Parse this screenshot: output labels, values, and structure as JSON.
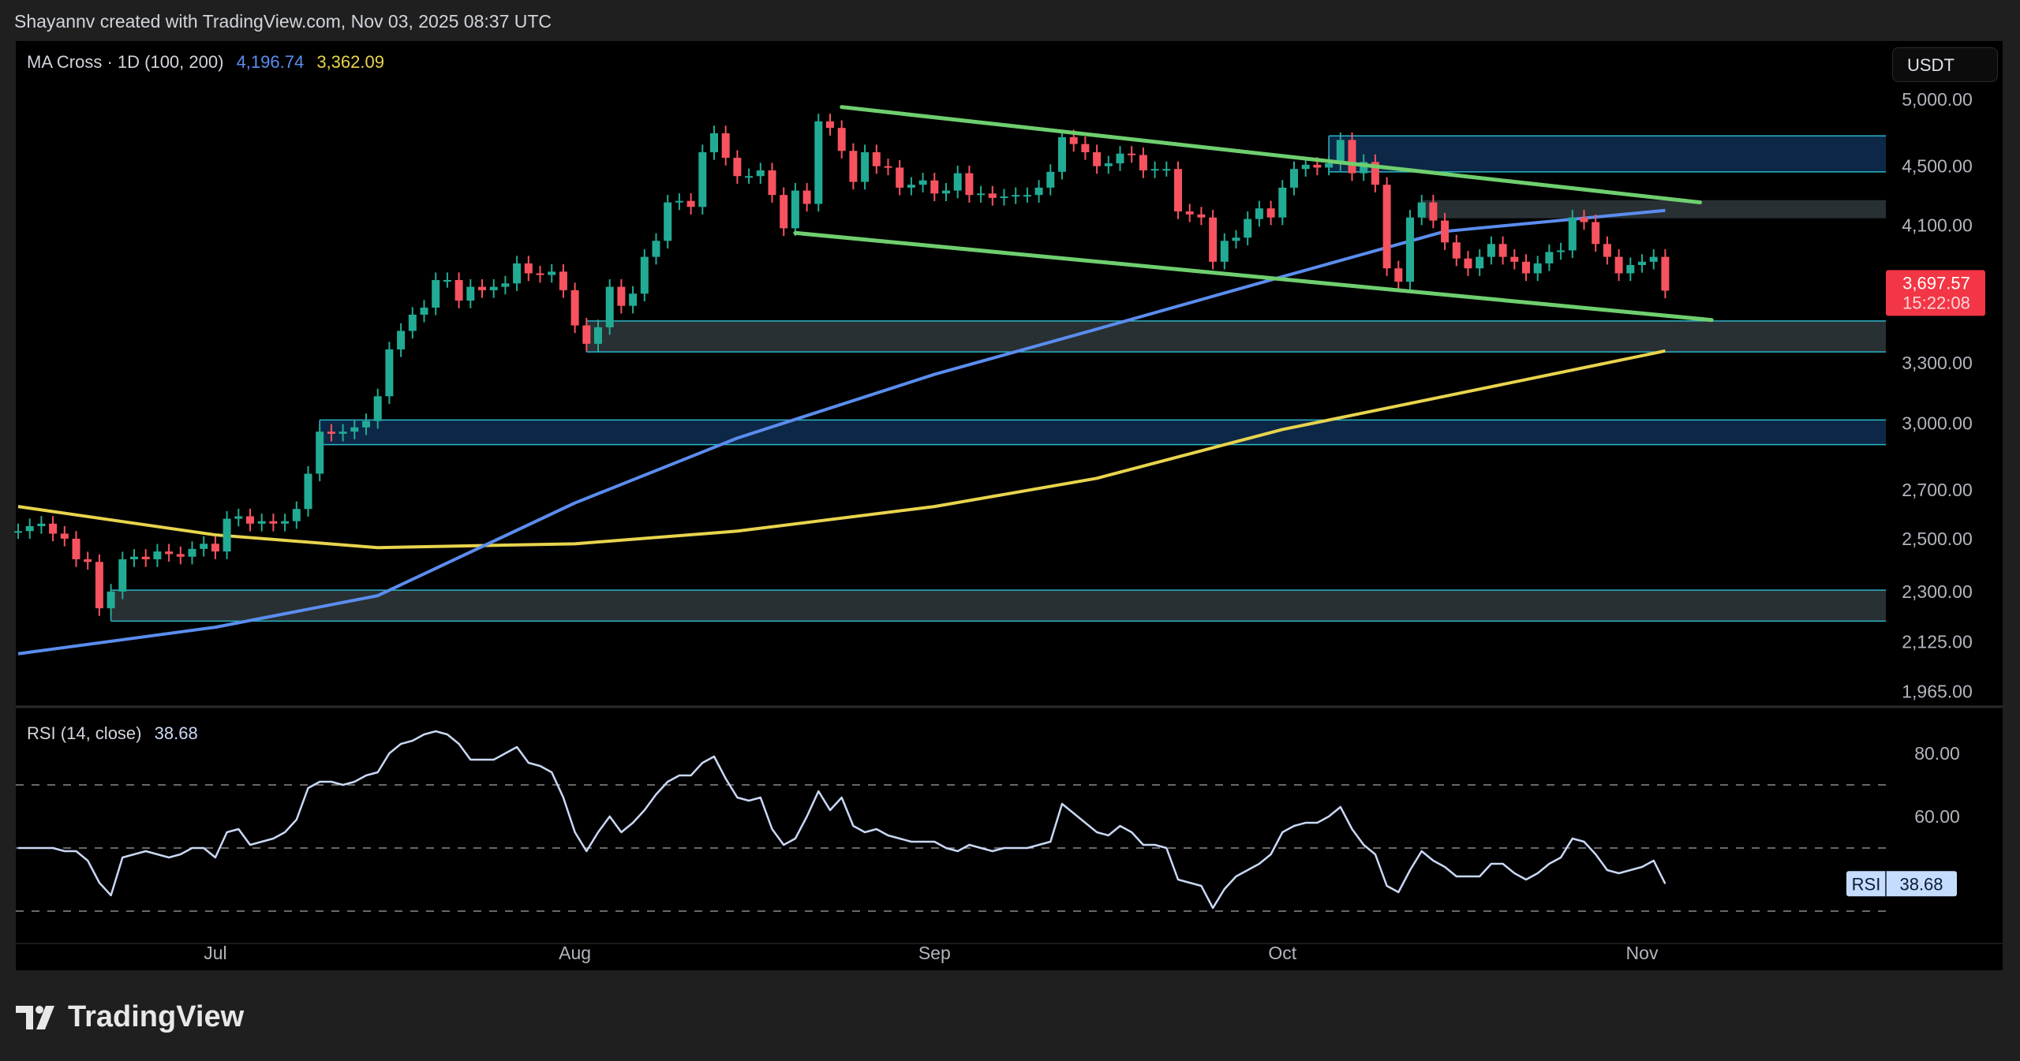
{
  "header": {
    "attribution": "Shayannv created with TradingView.com, Nov 03, 2025 08:37 UTC"
  },
  "legend": {
    "indicator": "MA Cross · 1D (100, 200)",
    "ma100_value": "4,196.74",
    "ma200_value": "3,362.09"
  },
  "rsi_legend": {
    "label": "RSI (14, close)",
    "value": "38.68"
  },
  "currency_button": "USDT",
  "price_badge": {
    "price": "3,697.57",
    "countdown": "15:22:08"
  },
  "rsi_badge": {
    "label": "RSI",
    "value": "38.68"
  },
  "brand": "TradingView",
  "colors": {
    "up": "#22ab94",
    "down": "#f7525f",
    "ma100": "#5b8def",
    "ma200": "#e8d44d",
    "channel": "#6fcf6f",
    "rsi": "#c9d8f5",
    "zone_blue": "#0d2a4a",
    "zone_gray": "#2a3336",
    "zone_border": "#2bb5c9"
  },
  "chart_data": {
    "type": "candlestick",
    "start_date": "2025-06-14",
    "scale": "log",
    "closes": [
      2530,
      2550,
      2560,
      2520,
      2500,
      2420,
      2410,
      2240,
      2300,
      2420,
      2430,
      2420,
      2450,
      2440,
      2430,
      2460,
      2480,
      2450,
      2580,
      2590,
      2560,
      2570,
      2560,
      2570,
      2620,
      2770,
      2960,
      2950,
      2960,
      2980,
      3010,
      3130,
      3370,
      3470,
      3560,
      3600,
      3760,
      3760,
      3640,
      3720,
      3700,
      3720,
      3740,
      3860,
      3800,
      3790,
      3810,
      3700,
      3500,
      3400,
      3490,
      3720,
      3610,
      3680,
      3900,
      4000,
      4250,
      4260,
      4220,
      4600,
      4740,
      4560,
      4430,
      4430,
      4470,
      4300,
      4080,
      4330,
      4240,
      4830,
      4780,
      4610,
      4390,
      4600,
      4500,
      4490,
      4350,
      4370,
      4400,
      4310,
      4330,
      4450,
      4300,
      4310,
      4280,
      4290,
      4300,
      4300,
      4350,
      4460,
      4710,
      4660,
      4600,
      4500,
      4520,
      4590,
      4580,
      4470,
      4480,
      4480,
      4190,
      4170,
      4150,
      3870,
      4000,
      4020,
      4140,
      4210,
      4150,
      4350,
      4480,
      4510,
      4490,
      4520,
      4690,
      4450,
      4530,
      4370,
      3830,
      3750,
      4150,
      4250,
      4130,
      3990,
      3890,
      3830,
      3900,
      3980,
      3900,
      3870,
      3800,
      3860,
      3930,
      3940,
      4150,
      4120,
      3980,
      3900,
      3800,
      3850,
      3870,
      3900,
      3697.57
    ],
    "ma100": [
      [
        "2025-06-14",
        2085
      ],
      [
        "2025-07-01",
        2174
      ],
      [
        "2025-07-15",
        2285
      ],
      [
        "2025-08-01",
        2645
      ],
      [
        "2025-08-15",
        2930
      ],
      [
        "2025-09-01",
        3240
      ],
      [
        "2025-09-15",
        3480
      ],
      [
        "2025-10-01",
        3780
      ],
      [
        "2025-10-15",
        4060
      ],
      [
        "2025-11-03",
        4196.74
      ]
    ],
    "ma200": [
      [
        "2025-06-14",
        2630
      ],
      [
        "2025-07-01",
        2515
      ],
      [
        "2025-07-15",
        2465
      ],
      [
        "2025-08-01",
        2480
      ],
      [
        "2025-08-15",
        2530
      ],
      [
        "2025-09-01",
        2630
      ],
      [
        "2025-09-15",
        2750
      ],
      [
        "2025-10-01",
        2970
      ],
      [
        "2025-10-15",
        3130
      ],
      [
        "2025-11-03",
        3362.09
      ]
    ],
    "zones": [
      {
        "from": "2025-10-05",
        "top": 4720,
        "bottom": 4460,
        "style": "blue"
      },
      {
        "from": "2025-10-13",
        "top": 4265,
        "bottom": 4145,
        "style": "gray"
      },
      {
        "from": "2025-08-02",
        "top": 3525,
        "bottom": 3357,
        "style": "gray"
      },
      {
        "from": "2025-07-10",
        "top": 3015,
        "bottom": 2900,
        "style": "blue"
      },
      {
        "from": "2025-06-22",
        "top": 2305,
        "bottom": 2195,
        "style": "gray"
      }
    ],
    "channel": [
      {
        "from": [
          "2025-08-24",
          4940
        ],
        "to": [
          "2025-11-06",
          4250
        ]
      },
      {
        "from": [
          "2025-08-20",
          4050
        ],
        "to": [
          "2025-11-07",
          3530
        ]
      }
    ],
    "price_ticks": [
      5000,
      4500,
      4100,
      3300,
      3000,
      2700,
      2500,
      2300,
      2125,
      1965
    ],
    "price_tick_labels": [
      "5,000.00",
      "4,500.00",
      "4,100.00",
      "3,300.00",
      "3,000.00",
      "2,700.00",
      "2,500.00",
      "2,300.00",
      "2,125.00",
      "1,965.00"
    ],
    "time_ticks": [
      [
        "2025-07-01",
        "Jul"
      ],
      [
        "2025-08-01",
        "Aug"
      ],
      [
        "2025-09-01",
        "Sep"
      ],
      [
        "2025-10-01",
        "Oct"
      ],
      [
        "2025-11-01",
        "Nov"
      ]
    ],
    "rsi": [
      50,
      50,
      50,
      50,
      49,
      49,
      46,
      39,
      35,
      47,
      48,
      49,
      48,
      47,
      48,
      50,
      50,
      47,
      55,
      56,
      51,
      52,
      53,
      55,
      59,
      69,
      71,
      71,
      70,
      71,
      73,
      74,
      80,
      83,
      84,
      86,
      87,
      86,
      83,
      78,
      78,
      78,
      80,
      82,
      77,
      76,
      74,
      66,
      55,
      49,
      55,
      60,
      55,
      58,
      62,
      67,
      71,
      73,
      73,
      77,
      79,
      72,
      66,
      65,
      66,
      56,
      51,
      53,
      60,
      68,
      62,
      66,
      57,
      55,
      56,
      54,
      53,
      52,
      52,
      52,
      50,
      49,
      51,
      50,
      49,
      50,
      50,
      50,
      51,
      52,
      64,
      61,
      58,
      55,
      54,
      57,
      55,
      51,
      51,
      50,
      40,
      39,
      38,
      31,
      37,
      41,
      43,
      45,
      48,
      55,
      57,
      58,
      58,
      60,
      63,
      56,
      51,
      48,
      38,
      36,
      43,
      49,
      46,
      44,
      41,
      41,
      41,
      45,
      45,
      42,
      40,
      42,
      45,
      47,
      53,
      52,
      48,
      43,
      42,
      43,
      44,
      46,
      38.68
    ],
    "rsi_ticks": [
      80,
      60
    ],
    "rsi_tick_labels": [
      "80.00",
      "60.00"
    ],
    "rsi_levels": [
      70,
      50,
      30
    ]
  }
}
